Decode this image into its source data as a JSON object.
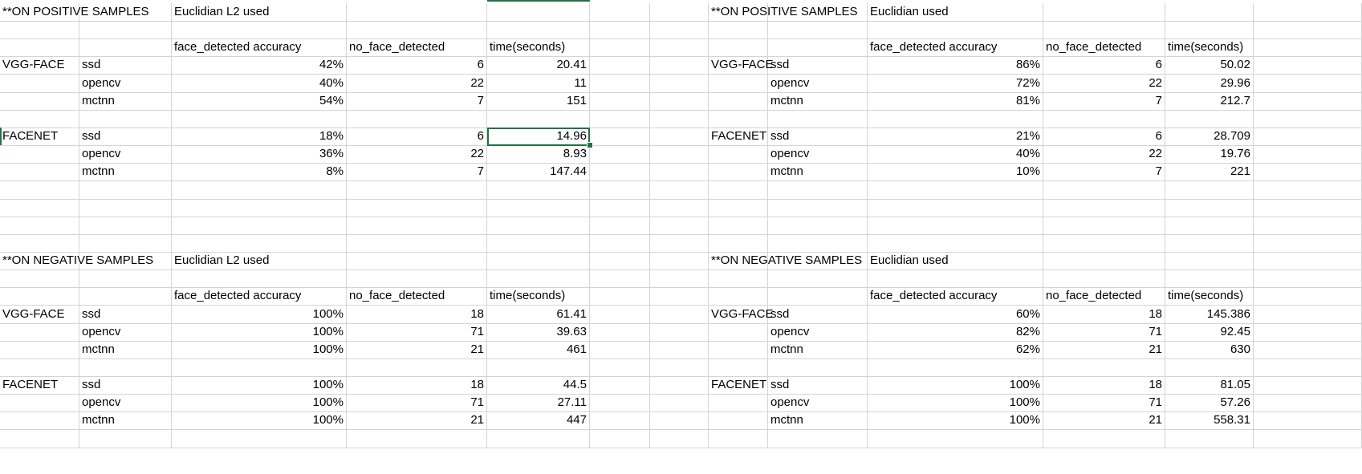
{
  "sheet": {
    "rows": [
      {
        "A": "**ON POSITIVE SAMPLES",
        "C": "Euclidian L2 used",
        "H": "**ON POSITIVE SAMPLES",
        "J": "Euclidian used"
      },
      {},
      {
        "C": "face_detected accuracy",
        "D": "no_face_detected",
        "E": "time(seconds)",
        "J": "face_detected accuracy",
        "K": "no_face_detected",
        "L": "time(seconds)"
      },
      {
        "A": "VGG-FACE",
        "B": "ssd",
        "C": "42%",
        "D": "6",
        "E": "20.41",
        "H": "VGG-FACE",
        "I": "ssd",
        "J": "86%",
        "K": "6",
        "L": "50.02"
      },
      {
        "B": "opencv",
        "C": "40%",
        "D": "22",
        "E": "11",
        "I": "opencv",
        "J": "72%",
        "K": "22",
        "L": "29.96"
      },
      {
        "B": "mctnn",
        "C": "54%",
        "D": "7",
        "E": "151",
        "I": "mctnn",
        "J": "81%",
        "K": "7",
        "L": "212.7"
      },
      {},
      {
        "A": "FACENET",
        "B": "ssd",
        "C": "18%",
        "D": "6",
        "E": "14.96",
        "H": "FACENET",
        "I": "ssd",
        "J": "21%",
        "K": "6",
        "L": "28.709"
      },
      {
        "B": "opencv",
        "C": "36%",
        "D": "22",
        "E": "8.93",
        "I": "opencv",
        "J": "40%",
        "K": "22",
        "L": "19.76"
      },
      {
        "B": "mctnn",
        "C": "8%",
        "D": "7",
        "E": "147.44",
        "I": "mctnn",
        "J": "10%",
        "K": "7",
        "L": "221"
      },
      {},
      {},
      {},
      {},
      {
        "A": "**ON NEGATIVE SAMPLES",
        "C": "Euclidian L2 used",
        "H": "**ON NEGATIVE SAMPLES",
        "J": "Euclidian  used"
      },
      {},
      {
        "C": "face_detected accuracy",
        "D": "no_face_detected",
        "E": "time(seconds)",
        "J": "face_detected accuracy",
        "K": "no_face_detected",
        "L": "time(seconds)"
      },
      {
        "A": "VGG-FACE",
        "B": "ssd",
        "C": "100%",
        "D": "18",
        "E": "61.41",
        "H": "VGG-FACE",
        "I": "ssd",
        "J": "60%",
        "K": "18",
        "L": "145.386"
      },
      {
        "B": "opencv",
        "C": "100%",
        "D": "71",
        "E": "39.63",
        "I": "opencv",
        "J": "82%",
        "K": "71",
        "L": "92.45"
      },
      {
        "B": "mctnn",
        "C": "100%",
        "D": "21",
        "E": "461",
        "I": "mctnn",
        "J": "62%",
        "K": "21",
        "L": "630"
      },
      {},
      {
        "A": "FACENET",
        "B": "ssd",
        "C": "100%",
        "D": "18",
        "E": "44.5",
        "H": "FACENET",
        "I": "ssd",
        "J": "100%",
        "K": "18",
        "L": "81.05"
      },
      {
        "B": "opencv",
        "C": "100%",
        "D": "71",
        "E": "27.11",
        "I": "opencv",
        "J": "100%",
        "K": "71",
        "L": "57.26"
      },
      {
        "B": "mctnn",
        "C": "100%",
        "D": "21",
        "E": "447",
        "I": "mctnn",
        "J": "100%",
        "K": "21",
        "L": "558.31"
      },
      {}
    ],
    "selected_cell": "E8",
    "grid_color": "#d4d4d4",
    "selection_color": "#217346"
  }
}
